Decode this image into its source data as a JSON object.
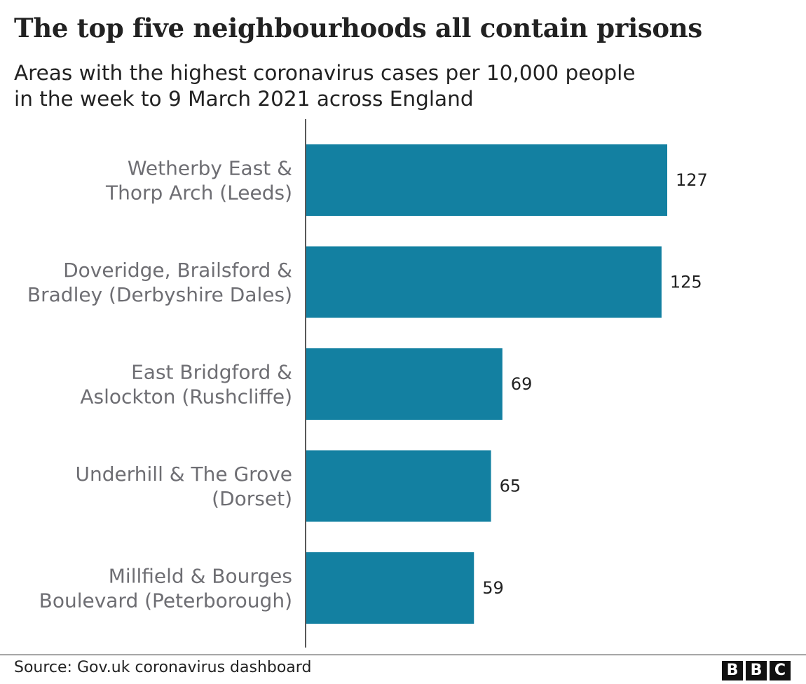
{
  "chart_data": {
    "type": "bar",
    "orientation": "horizontal",
    "title": "The top five neighbourhoods all contain prisons",
    "subtitle_lines": [
      "Areas with the highest coronavirus cases per 10,000 people",
      "in the week to 9 March 2021 across England"
    ],
    "categories": [
      [
        "Wetherby East &",
        "Thorp Arch (Leeds)"
      ],
      [
        "Doveridge, Brailsford &",
        "Bradley (Derbyshire Dales)"
      ],
      [
        "East Bridgford &",
        "Aslockton (Rushcliffe)"
      ],
      [
        "Underhill & The Grove",
        "(Dorset)"
      ],
      [
        "Millfield & Bourges",
        "Boulevard (Peterborough)"
      ]
    ],
    "values": [
      127,
      125,
      69,
      65,
      59
    ],
    "value_labels": [
      "127",
      "125",
      "69",
      "65",
      "59"
    ],
    "xlim": [
      0,
      127
    ],
    "grid": false,
    "bar_color": "#1380a1"
  },
  "footer": {
    "source": "Source: Gov.uk coronavirus dashboard",
    "logo_letters": [
      "B",
      "B",
      "C"
    ]
  }
}
